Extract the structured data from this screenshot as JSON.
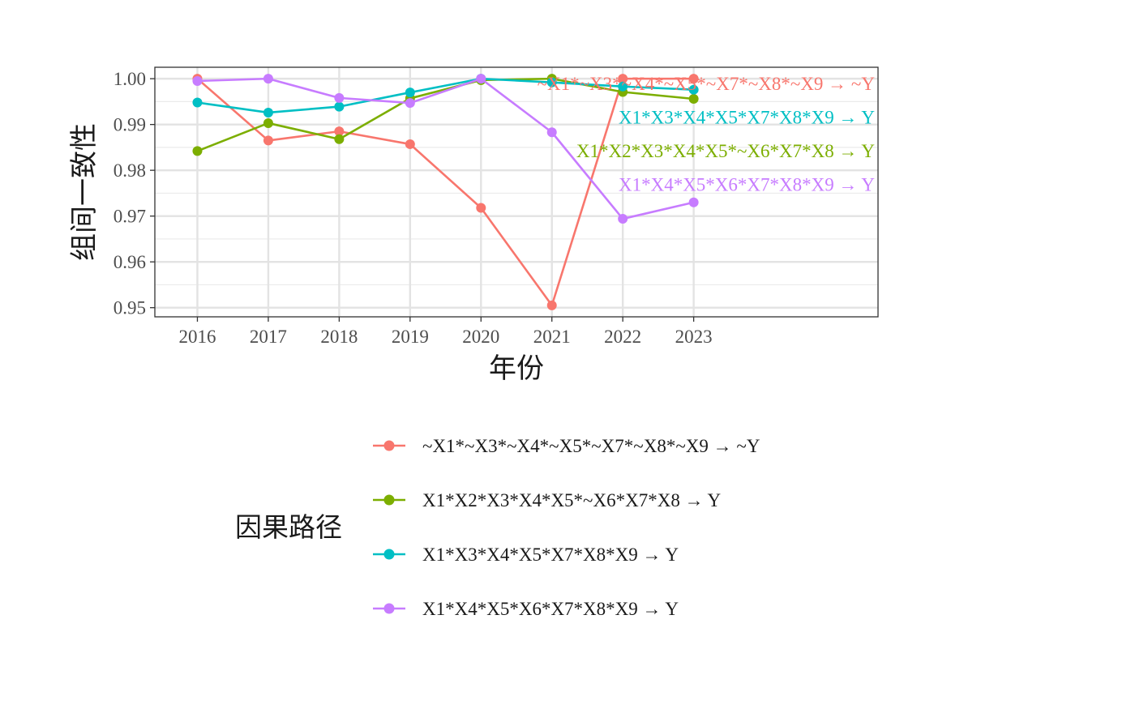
{
  "chart_data": {
    "type": "line",
    "xlabel": "年份",
    "ylabel": "组间一致性",
    "x": [
      2016,
      2017,
      2018,
      2019,
      2020,
      2021,
      2022,
      2023
    ],
    "x_tick_labels": [
      "2016",
      "2017",
      "2018",
      "2019",
      "2020",
      "2021",
      "2022",
      "2023"
    ],
    "xlim": [
      2015.4,
      2025.6
    ],
    "ylim": [
      0.948,
      1.0025
    ],
    "y_ticks": [
      0.95,
      0.96,
      0.97,
      0.98,
      0.99,
      1.0
    ],
    "y_tick_labels": [
      "0.95",
      "0.96",
      "0.97",
      "0.98",
      "0.99",
      "1.00"
    ],
    "grid": true,
    "legend": {
      "title": "因果路径",
      "placement": "bottom"
    },
    "series": [
      {
        "name": "~X1*~X3*~X4*~X5*~X7*~X8*~X9 → ~Y",
        "color": "#F8766D",
        "values": [
          1.0,
          0.9865,
          0.9885,
          0.9857,
          0.9718,
          0.9505,
          1.0,
          1.0
        ]
      },
      {
        "name": "X1*X2*X3*X4*X5*~X6*X7*X8 → Y",
        "color": "#7CAE00",
        "values": [
          0.9842,
          0.9903,
          0.9868,
          0.9957,
          0.9997,
          1.0,
          0.9971,
          0.9956
        ]
      },
      {
        "name": "X1*X3*X4*X5*X7*X8*X9 → Y",
        "color": "#00BFC4",
        "values": [
          0.9948,
          0.9926,
          0.9939,
          0.997,
          1.0,
          0.9992,
          0.9983,
          0.9976
        ]
      },
      {
        "name": "X1*X4*X5*X6*X7*X8*X9 → Y",
        "color": "#C77CFF",
        "values": [
          0.9995,
          1.0,
          0.9958,
          0.9947,
          1.0,
          0.9883,
          0.9694,
          0.973
        ]
      }
    ],
    "end_label_order": [
      0,
      2,
      1,
      3
    ]
  }
}
